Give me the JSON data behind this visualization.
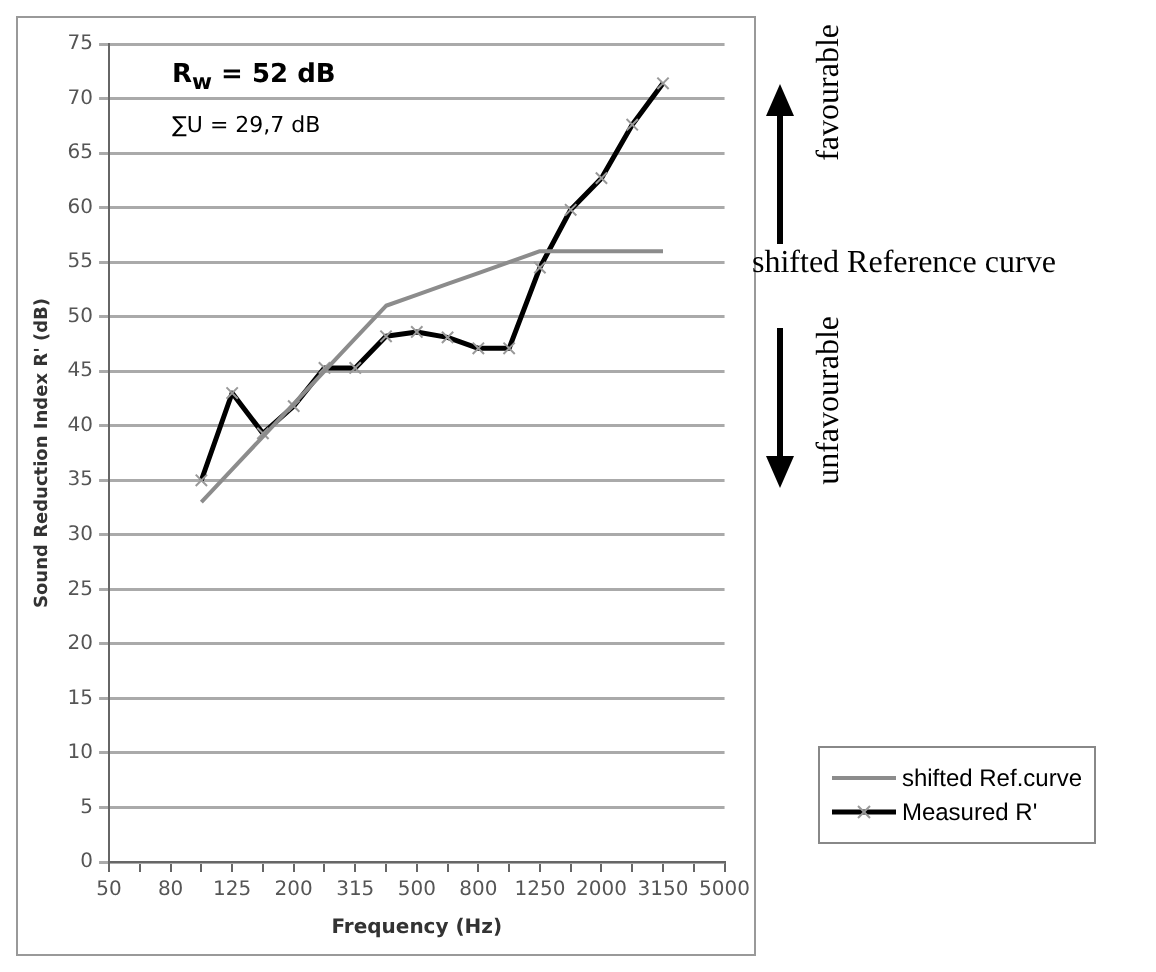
{
  "chart_data": {
    "type": "line",
    "xlabel": "Frequency (Hz)",
    "ylabel": "Sound Reduction Index R' (dB)",
    "categories": [
      "50",
      null,
      "80",
      null,
      "125",
      null,
      "200",
      null,
      "315",
      null,
      "500",
      null,
      "800",
      null,
      "1250",
      null,
      "2000",
      null,
      "3150",
      null,
      "5000"
    ],
    "series": [
      {
        "name": "shifted Ref.curve",
        "color": "#8c8c8c",
        "marker": "none",
        "values": [
          null,
          null,
          null,
          33,
          36,
          39,
          42,
          45,
          48,
          51,
          52,
          53,
          54,
          55,
          56,
          56,
          56,
          56,
          56,
          null,
          null
        ]
      },
      {
        "name": "Measured R'",
        "color": "#000000",
        "marker": "cross",
        "values": [
          null,
          null,
          null,
          35,
          43,
          39.3,
          41.8,
          45.3,
          45.3,
          48.2,
          48.6,
          48.1,
          47.1,
          47.1,
          54.5,
          59.8,
          62.7,
          67.6,
          71.4,
          null,
          null
        ]
      }
    ],
    "ylim": [
      0,
      75
    ],
    "yticks": [
      0,
      5,
      10,
      15,
      20,
      25,
      30,
      35,
      40,
      45,
      50,
      55,
      60,
      65,
      70,
      75
    ],
    "grid": "y",
    "legend": "bottom right",
    "annotations": [
      "R$_{w}$ = 52 dB",
      "∑U = 29,7 dB",
      "favourable",
      "shifted Reference curve",
      "unfavourable"
    ]
  }
}
